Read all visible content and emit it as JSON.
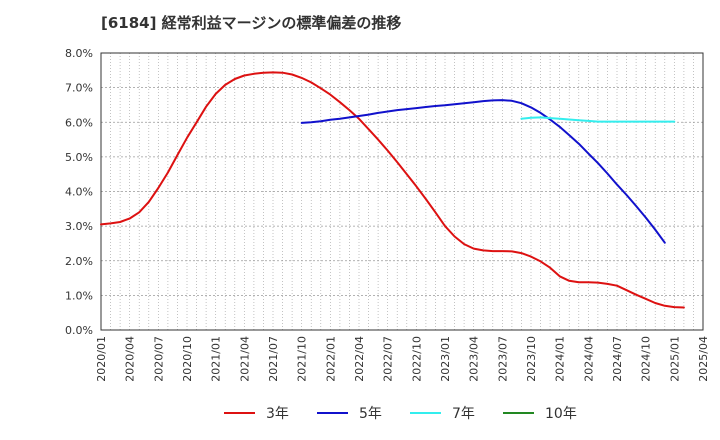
{
  "chart_data": {
    "type": "line",
    "title": "[6184]  経常利益マージンの標準偏差の推移",
    "xlabel": "",
    "ylabel": "",
    "ylim": [
      0,
      8
    ],
    "y_ticks": [
      "0.0%",
      "1.0%",
      "2.0%",
      "3.0%",
      "4.0%",
      "5.0%",
      "6.0%",
      "7.0%",
      "8.0%"
    ],
    "x_ticks": [
      "2020/01",
      "2020/04",
      "2020/07",
      "2020/10",
      "2021/01",
      "2021/04",
      "2021/07",
      "2021/10",
      "2022/01",
      "2022/04",
      "2022/07",
      "2022/10",
      "2023/01",
      "2023/04",
      "2023/07",
      "2023/10",
      "2024/01",
      "2024/04",
      "2024/07",
      "2024/10",
      "2025/01",
      "2025/04"
    ],
    "grid": true,
    "legend_position": "bottom",
    "series": [
      {
        "name": "3年",
        "color": "#dd1111",
        "points": [
          [
            "2020/01",
            3.05
          ],
          [
            "2020/02",
            3.08
          ],
          [
            "2020/03",
            3.12
          ],
          [
            "2020/04",
            3.22
          ],
          [
            "2020/05",
            3.4
          ],
          [
            "2020/06",
            3.7
          ],
          [
            "2020/07",
            4.1
          ],
          [
            "2020/08",
            4.55
          ],
          [
            "2020/09",
            5.05
          ],
          [
            "2020/10",
            5.55
          ],
          [
            "2020/11",
            6.0
          ],
          [
            "2020/12",
            6.45
          ],
          [
            "2021/01",
            6.82
          ],
          [
            "2021/02",
            7.08
          ],
          [
            "2021/03",
            7.25
          ],
          [
            "2021/04",
            7.35
          ],
          [
            "2021/05",
            7.4
          ],
          [
            "2021/06",
            7.43
          ],
          [
            "2021/07",
            7.44
          ],
          [
            "2021/08",
            7.43
          ],
          [
            "2021/09",
            7.38
          ],
          [
            "2021/10",
            7.28
          ],
          [
            "2021/11",
            7.15
          ],
          [
            "2021/12",
            6.98
          ],
          [
            "2022/01",
            6.8
          ],
          [
            "2022/02",
            6.58
          ],
          [
            "2022/03",
            6.35
          ],
          [
            "2022/04",
            6.1
          ],
          [
            "2022/05",
            5.8
          ],
          [
            "2022/06",
            5.5
          ],
          [
            "2022/07",
            5.18
          ],
          [
            "2022/08",
            4.85
          ],
          [
            "2022/09",
            4.5
          ],
          [
            "2022/10",
            4.15
          ],
          [
            "2022/11",
            3.78
          ],
          [
            "2022/12",
            3.4
          ],
          [
            "2023/01",
            3.0
          ],
          [
            "2023/02",
            2.7
          ],
          [
            "2023/03",
            2.48
          ],
          [
            "2023/04",
            2.35
          ],
          [
            "2023/05",
            2.3
          ],
          [
            "2023/06",
            2.28
          ],
          [
            "2023/07",
            2.28
          ],
          [
            "2023/08",
            2.27
          ],
          [
            "2023/09",
            2.22
          ],
          [
            "2023/10",
            2.12
          ],
          [
            "2023/11",
            1.98
          ],
          [
            "2023/12",
            1.8
          ],
          [
            "2024/01",
            1.55
          ],
          [
            "2024/02",
            1.42
          ],
          [
            "2024/03",
            1.38
          ],
          [
            "2024/04",
            1.38
          ],
          [
            "2024/05",
            1.37
          ],
          [
            "2024/06",
            1.33
          ],
          [
            "2024/07",
            1.28
          ],
          [
            "2024/08",
            1.15
          ],
          [
            "2024/09",
            1.02
          ],
          [
            "2024/10",
            0.9
          ],
          [
            "2024/11",
            0.78
          ],
          [
            "2024/12",
            0.7
          ],
          [
            "2025/01",
            0.66
          ],
          [
            "2025/02",
            0.65
          ]
        ]
      },
      {
        "name": "5年",
        "color": "#1111cc",
        "points": [
          [
            "2021/10",
            5.98
          ],
          [
            "2021/11",
            6.0
          ],
          [
            "2021/12",
            6.03
          ],
          [
            "2022/01",
            6.07
          ],
          [
            "2022/02",
            6.1
          ],
          [
            "2022/03",
            6.14
          ],
          [
            "2022/04",
            6.18
          ],
          [
            "2022/05",
            6.22
          ],
          [
            "2022/06",
            6.27
          ],
          [
            "2022/07",
            6.31
          ],
          [
            "2022/08",
            6.35
          ],
          [
            "2022/09",
            6.38
          ],
          [
            "2022/10",
            6.41
          ],
          [
            "2022/11",
            6.44
          ],
          [
            "2022/12",
            6.47
          ],
          [
            "2023/01",
            6.49
          ],
          [
            "2023/02",
            6.52
          ],
          [
            "2023/03",
            6.55
          ],
          [
            "2023/04",
            6.58
          ],
          [
            "2023/05",
            6.61
          ],
          [
            "2023/06",
            6.63
          ],
          [
            "2023/07",
            6.64
          ],
          [
            "2023/08",
            6.62
          ],
          [
            "2023/09",
            6.55
          ],
          [
            "2023/10",
            6.43
          ],
          [
            "2023/11",
            6.27
          ],
          [
            "2023/12",
            6.08
          ],
          [
            "2024/01",
            5.87
          ],
          [
            "2024/02",
            5.63
          ],
          [
            "2024/03",
            5.38
          ],
          [
            "2024/04",
            5.1
          ],
          [
            "2024/05",
            4.82
          ],
          [
            "2024/06",
            4.52
          ],
          [
            "2024/07",
            4.2
          ],
          [
            "2024/08",
            3.9
          ],
          [
            "2024/09",
            3.58
          ],
          [
            "2024/10",
            3.25
          ],
          [
            "2024/11",
            2.9
          ],
          [
            "2024/12",
            2.52
          ]
        ]
      },
      {
        "name": "7年",
        "color": "#33eeee",
        "points": [
          [
            "2023/09",
            6.1
          ],
          [
            "2023/10",
            6.13
          ],
          [
            "2023/11",
            6.14
          ],
          [
            "2023/12",
            6.12
          ],
          [
            "2024/01",
            6.1
          ],
          [
            "2024/02",
            6.08
          ],
          [
            "2024/03",
            6.06
          ],
          [
            "2024/04",
            6.04
          ],
          [
            "2024/05",
            6.02
          ],
          [
            "2024/06",
            6.02
          ],
          [
            "2024/07",
            6.02
          ],
          [
            "2024/08",
            6.02
          ],
          [
            "2024/09",
            6.02
          ],
          [
            "2024/10",
            6.02
          ],
          [
            "2024/11",
            6.02
          ],
          [
            "2024/12",
            6.02
          ],
          [
            "2025/01",
            6.02
          ]
        ]
      },
      {
        "name": "10年",
        "color": "#228822",
        "points": []
      }
    ]
  }
}
